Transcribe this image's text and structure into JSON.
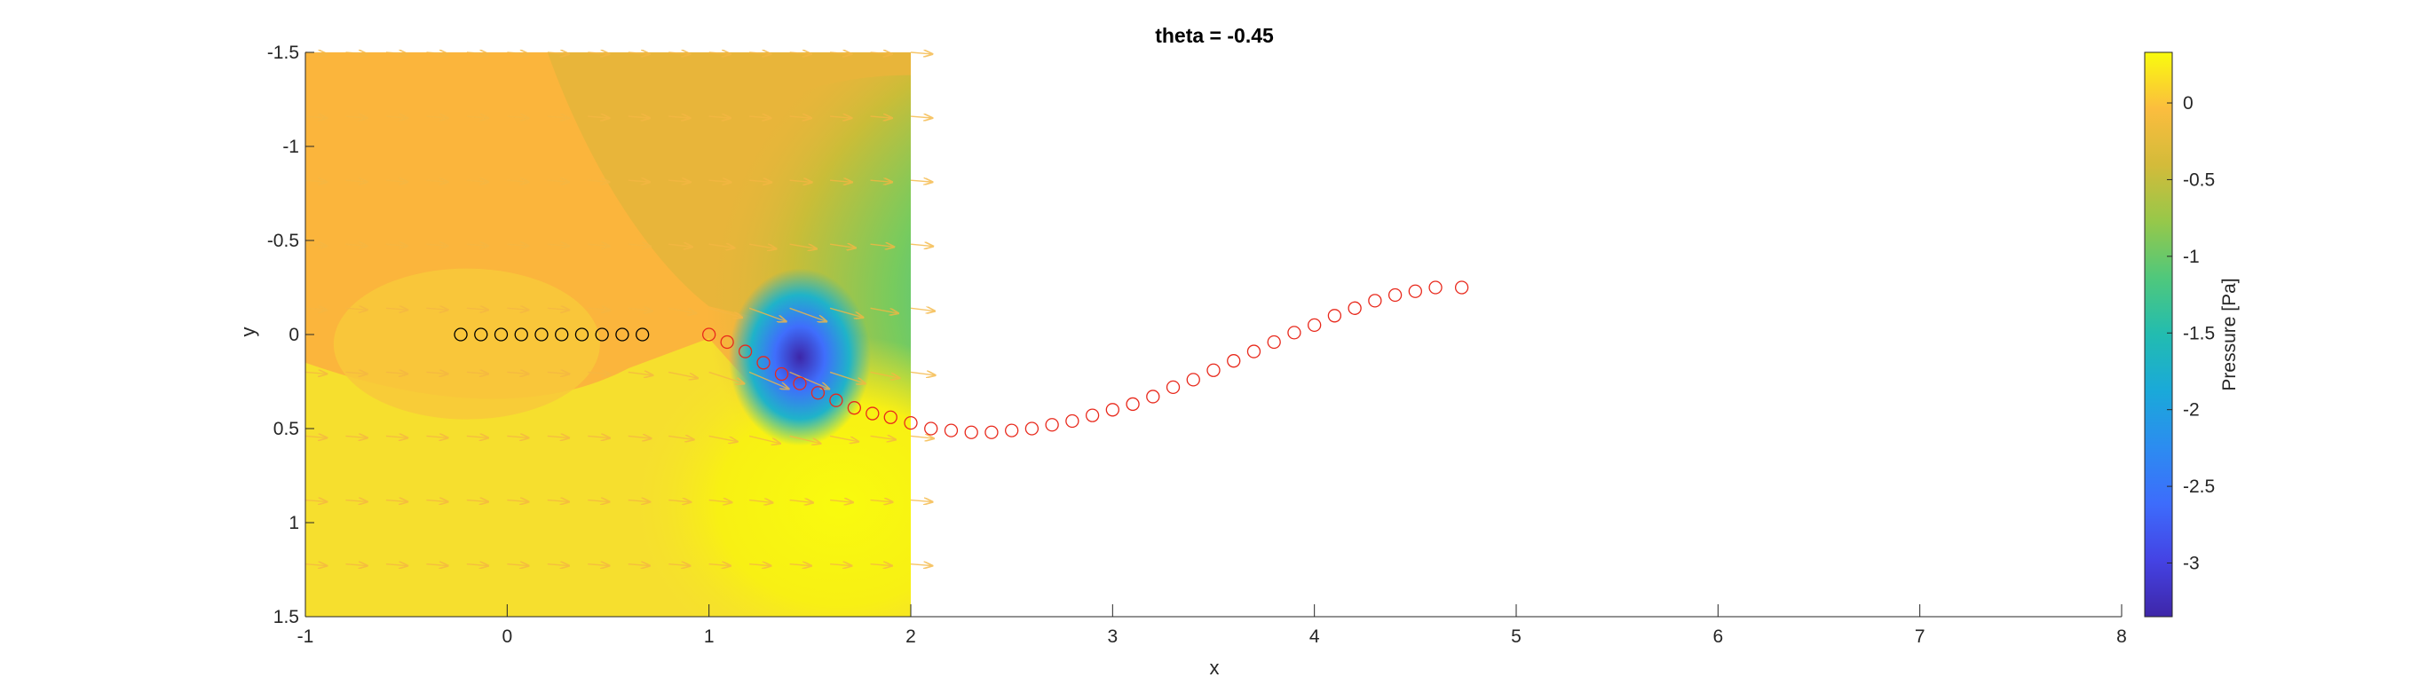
{
  "chart_data": {
    "type": "heatmap",
    "title": "theta = -0.45",
    "xlabel": "x",
    "ylabel": "y",
    "xlim": [
      -1,
      8
    ],
    "ylim": [
      -1.5,
      1.5
    ],
    "y_axis_direction": "reversed",
    "xticks": [
      "-1",
      "0",
      "1",
      "2",
      "3",
      "4",
      "5",
      "6",
      "7",
      "8"
    ],
    "yticks": [
      "-1.5",
      "-1",
      "-0.5",
      "0",
      "0.5",
      "1",
      "1.5"
    ],
    "colorbar": {
      "label": "Pressure [Pa]",
      "range": [
        -3.35,
        0.33
      ],
      "ticks": [
        "0",
        "-0.5",
        "-1",
        "-1.5",
        "-2",
        "-2.5",
        "-3"
      ],
      "colormap": "parula"
    },
    "pressure_field": {
      "x_range": [
        -1,
        2
      ],
      "y_range": [
        -1.5,
        1.5
      ],
      "description_free": true
    },
    "series": [
      {
        "marker": "circle",
        "color": "#000000",
        "x": [
          -0.23,
          -0.13,
          -0.03,
          0.07,
          0.17,
          0.27,
          0.37,
          0.47,
          0.57,
          0.67
        ],
        "y": [
          0,
          0,
          0,
          0,
          0,
          0,
          0,
          0,
          0,
          0
        ]
      },
      {
        "marker": "circle",
        "color": "#e8291c",
        "x": [
          1.0,
          1.09,
          1.18,
          1.27,
          1.36,
          1.45,
          1.54,
          1.63,
          1.72,
          1.81,
          1.9,
          2.0,
          2.1,
          2.2,
          2.3,
          2.4,
          2.5,
          2.6,
          2.7,
          2.8,
          2.9,
          3.0,
          3.1,
          3.2,
          3.3,
          3.4,
          3.5,
          3.6,
          3.7,
          3.8,
          3.9,
          4.0,
          4.1,
          4.2,
          4.3,
          4.4,
          4.5,
          4.6,
          4.73
        ],
        "y": [
          0.0,
          0.04,
          0.09,
          0.15,
          0.21,
          0.26,
          0.31,
          0.35,
          0.39,
          0.42,
          0.44,
          0.47,
          0.5,
          0.51,
          0.52,
          0.52,
          0.51,
          0.5,
          0.48,
          0.46,
          0.43,
          0.4,
          0.37,
          0.33,
          0.28,
          0.24,
          0.19,
          0.14,
          0.09,
          0.04,
          -0.01,
          -0.05,
          -0.1,
          -0.14,
          -0.18,
          -0.21,
          -0.23,
          -0.25,
          -0.25
        ]
      }
    ],
    "colors": {
      "field_high": "#f9fb0e",
      "field_ambient": "#fbb53c",
      "field_low": "#3d26a8",
      "quiver": "#f5b743",
      "axis": "#262626"
    }
  }
}
